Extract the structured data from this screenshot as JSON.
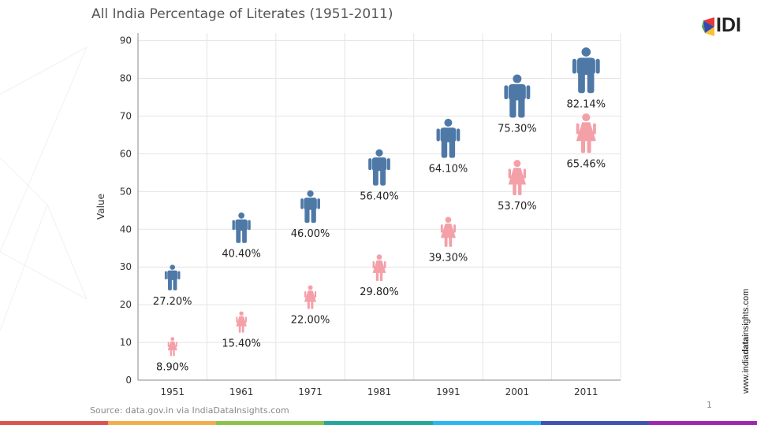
{
  "title": "All India Percentage of Literates  (1951-2011)",
  "logo": {
    "text": "IDI"
  },
  "side_url": {
    "prefix": "www.india",
    "bold": "data",
    "suffix": "insights.com"
  },
  "source": "Source: data.gov.in via IndiaDataInsights.com",
  "page_number": "1",
  "colors": {
    "male": "#4e79a7",
    "female": "#f4a0a8",
    "grid": "#e4e4e4",
    "axis": "#888888"
  },
  "bottom_bar_colors": [
    "#d9534f",
    "#f0ad4e",
    "#8bc34a",
    "#26a69a",
    "#29b6f6",
    "#3f51b5",
    "#9c27b0"
  ],
  "chart_data": {
    "type": "scatter",
    "title": "All India Percentage of Literates  (1951-2011)",
    "xlabel": "",
    "ylabel": "Value",
    "ylim": [
      0,
      90
    ],
    "yticks": [
      0,
      10,
      20,
      30,
      40,
      50,
      60,
      70,
      80,
      90
    ],
    "categories": [
      "1951",
      "1961",
      "1971",
      "1981",
      "1991",
      "2001",
      "2011"
    ],
    "grid": true,
    "series": [
      {
        "name": "Male",
        "icon": "male-person-icon",
        "values": [
          27.2,
          40.4,
          46.0,
          56.4,
          64.1,
          75.3,
          82.14
        ],
        "labels": [
          "27.20%",
          "40.40%",
          "46.00%",
          "56.40%",
          "64.10%",
          "75.30%",
          "82.14%"
        ]
      },
      {
        "name": "Female",
        "icon": "female-person-icon",
        "values": [
          8.9,
          15.4,
          22.0,
          29.8,
          39.3,
          53.7,
          65.46
        ],
        "labels": [
          "8.90%",
          "15.40%",
          "22.00%",
          "29.80%",
          "39.30%",
          "53.70%",
          "65.46%"
        ]
      }
    ]
  }
}
